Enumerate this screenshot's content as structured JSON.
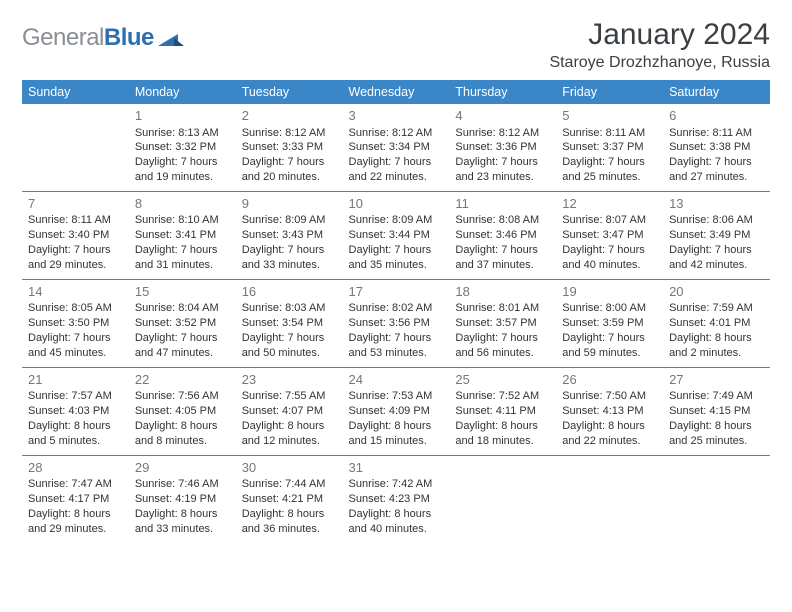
{
  "brand": {
    "part1": "General",
    "part2": "Blue"
  },
  "title": {
    "month": "January 2024",
    "location": "Staroye Drozhzhanoye, Russia"
  },
  "colors": {
    "header_bg": "#3b86c7",
    "header_fg": "#ffffff",
    "rule": "#3b86c7",
    "daynum": "#777777",
    "text": "#333333"
  },
  "dayHeaders": [
    "Sunday",
    "Monday",
    "Tuesday",
    "Wednesday",
    "Thursday",
    "Friday",
    "Saturday"
  ],
  "weeks": [
    [
      null,
      {
        "n": "1",
        "sr": "Sunrise: 8:13 AM",
        "ss": "Sunset: 3:32 PM",
        "d1": "Daylight: 7 hours",
        "d2": "and 19 minutes."
      },
      {
        "n": "2",
        "sr": "Sunrise: 8:12 AM",
        "ss": "Sunset: 3:33 PM",
        "d1": "Daylight: 7 hours",
        "d2": "and 20 minutes."
      },
      {
        "n": "3",
        "sr": "Sunrise: 8:12 AM",
        "ss": "Sunset: 3:34 PM",
        "d1": "Daylight: 7 hours",
        "d2": "and 22 minutes."
      },
      {
        "n": "4",
        "sr": "Sunrise: 8:12 AM",
        "ss": "Sunset: 3:36 PM",
        "d1": "Daylight: 7 hours",
        "d2": "and 23 minutes."
      },
      {
        "n": "5",
        "sr": "Sunrise: 8:11 AM",
        "ss": "Sunset: 3:37 PM",
        "d1": "Daylight: 7 hours",
        "d2": "and 25 minutes."
      },
      {
        "n": "6",
        "sr": "Sunrise: 8:11 AM",
        "ss": "Sunset: 3:38 PM",
        "d1": "Daylight: 7 hours",
        "d2": "and 27 minutes."
      }
    ],
    [
      {
        "n": "7",
        "sr": "Sunrise: 8:11 AM",
        "ss": "Sunset: 3:40 PM",
        "d1": "Daylight: 7 hours",
        "d2": "and 29 minutes."
      },
      {
        "n": "8",
        "sr": "Sunrise: 8:10 AM",
        "ss": "Sunset: 3:41 PM",
        "d1": "Daylight: 7 hours",
        "d2": "and 31 minutes."
      },
      {
        "n": "9",
        "sr": "Sunrise: 8:09 AM",
        "ss": "Sunset: 3:43 PM",
        "d1": "Daylight: 7 hours",
        "d2": "and 33 minutes."
      },
      {
        "n": "10",
        "sr": "Sunrise: 8:09 AM",
        "ss": "Sunset: 3:44 PM",
        "d1": "Daylight: 7 hours",
        "d2": "and 35 minutes."
      },
      {
        "n": "11",
        "sr": "Sunrise: 8:08 AM",
        "ss": "Sunset: 3:46 PM",
        "d1": "Daylight: 7 hours",
        "d2": "and 37 minutes."
      },
      {
        "n": "12",
        "sr": "Sunrise: 8:07 AM",
        "ss": "Sunset: 3:47 PM",
        "d1": "Daylight: 7 hours",
        "d2": "and 40 minutes."
      },
      {
        "n": "13",
        "sr": "Sunrise: 8:06 AM",
        "ss": "Sunset: 3:49 PM",
        "d1": "Daylight: 7 hours",
        "d2": "and 42 minutes."
      }
    ],
    [
      {
        "n": "14",
        "sr": "Sunrise: 8:05 AM",
        "ss": "Sunset: 3:50 PM",
        "d1": "Daylight: 7 hours",
        "d2": "and 45 minutes."
      },
      {
        "n": "15",
        "sr": "Sunrise: 8:04 AM",
        "ss": "Sunset: 3:52 PM",
        "d1": "Daylight: 7 hours",
        "d2": "and 47 minutes."
      },
      {
        "n": "16",
        "sr": "Sunrise: 8:03 AM",
        "ss": "Sunset: 3:54 PM",
        "d1": "Daylight: 7 hours",
        "d2": "and 50 minutes."
      },
      {
        "n": "17",
        "sr": "Sunrise: 8:02 AM",
        "ss": "Sunset: 3:56 PM",
        "d1": "Daylight: 7 hours",
        "d2": "and 53 minutes."
      },
      {
        "n": "18",
        "sr": "Sunrise: 8:01 AM",
        "ss": "Sunset: 3:57 PM",
        "d1": "Daylight: 7 hours",
        "d2": "and 56 minutes."
      },
      {
        "n": "19",
        "sr": "Sunrise: 8:00 AM",
        "ss": "Sunset: 3:59 PM",
        "d1": "Daylight: 7 hours",
        "d2": "and 59 minutes."
      },
      {
        "n": "20",
        "sr": "Sunrise: 7:59 AM",
        "ss": "Sunset: 4:01 PM",
        "d1": "Daylight: 8 hours",
        "d2": "and 2 minutes."
      }
    ],
    [
      {
        "n": "21",
        "sr": "Sunrise: 7:57 AM",
        "ss": "Sunset: 4:03 PM",
        "d1": "Daylight: 8 hours",
        "d2": "and 5 minutes."
      },
      {
        "n": "22",
        "sr": "Sunrise: 7:56 AM",
        "ss": "Sunset: 4:05 PM",
        "d1": "Daylight: 8 hours",
        "d2": "and 8 minutes."
      },
      {
        "n": "23",
        "sr": "Sunrise: 7:55 AM",
        "ss": "Sunset: 4:07 PM",
        "d1": "Daylight: 8 hours",
        "d2": "and 12 minutes."
      },
      {
        "n": "24",
        "sr": "Sunrise: 7:53 AM",
        "ss": "Sunset: 4:09 PM",
        "d1": "Daylight: 8 hours",
        "d2": "and 15 minutes."
      },
      {
        "n": "25",
        "sr": "Sunrise: 7:52 AM",
        "ss": "Sunset: 4:11 PM",
        "d1": "Daylight: 8 hours",
        "d2": "and 18 minutes."
      },
      {
        "n": "26",
        "sr": "Sunrise: 7:50 AM",
        "ss": "Sunset: 4:13 PM",
        "d1": "Daylight: 8 hours",
        "d2": "and 22 minutes."
      },
      {
        "n": "27",
        "sr": "Sunrise: 7:49 AM",
        "ss": "Sunset: 4:15 PM",
        "d1": "Daylight: 8 hours",
        "d2": "and 25 minutes."
      }
    ],
    [
      {
        "n": "28",
        "sr": "Sunrise: 7:47 AM",
        "ss": "Sunset: 4:17 PM",
        "d1": "Daylight: 8 hours",
        "d2": "and 29 minutes."
      },
      {
        "n": "29",
        "sr": "Sunrise: 7:46 AM",
        "ss": "Sunset: 4:19 PM",
        "d1": "Daylight: 8 hours",
        "d2": "and 33 minutes."
      },
      {
        "n": "30",
        "sr": "Sunrise: 7:44 AM",
        "ss": "Sunset: 4:21 PM",
        "d1": "Daylight: 8 hours",
        "d2": "and 36 minutes."
      },
      {
        "n": "31",
        "sr": "Sunrise: 7:42 AM",
        "ss": "Sunset: 4:23 PM",
        "d1": "Daylight: 8 hours",
        "d2": "and 40 minutes."
      },
      null,
      null,
      null
    ]
  ]
}
